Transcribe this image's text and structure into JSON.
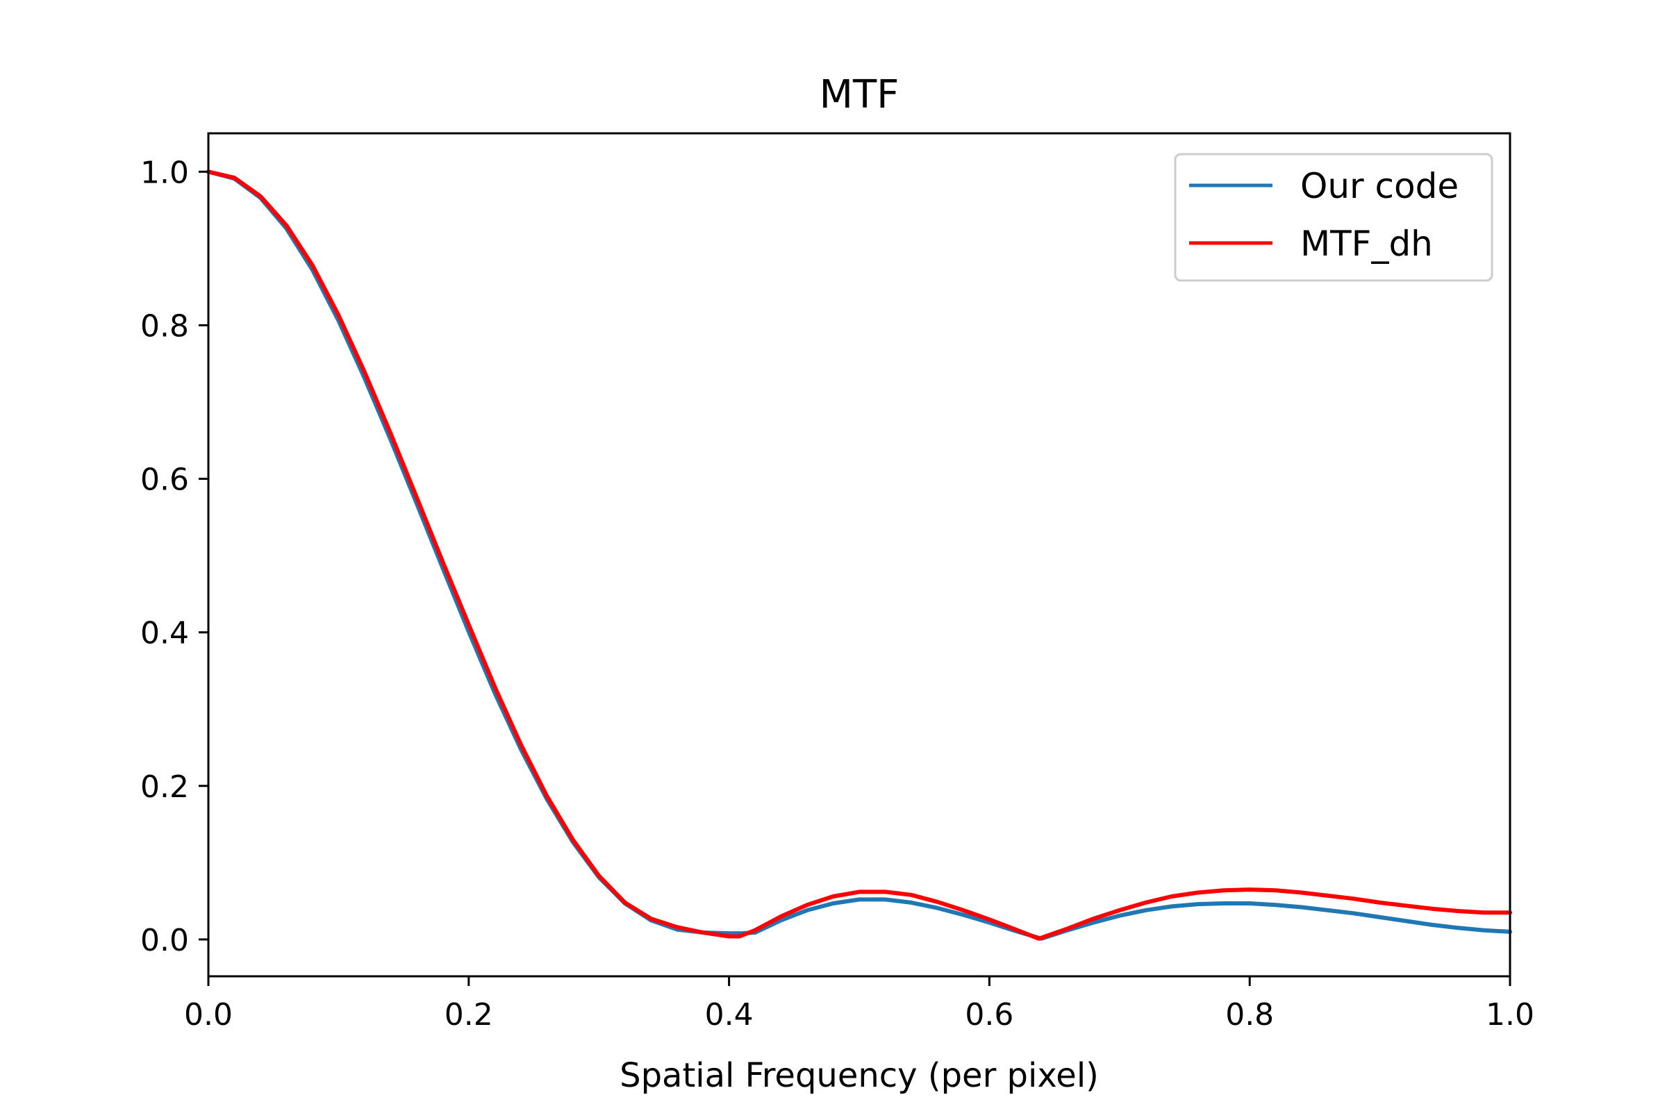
{
  "chart_data": {
    "type": "line",
    "title": "MTF",
    "xlabel": "Spatial Frequency (per pixel)",
    "ylabel": "",
    "xlim": [
      0.0,
      1.0
    ],
    "ylim": [
      -0.048,
      1.05
    ],
    "xticks": [
      0.0,
      0.2,
      0.4,
      0.6,
      0.8,
      1.0
    ],
    "xtick_labels": [
      "0.0",
      "0.2",
      "0.4",
      "0.6",
      "0.8",
      "1.0"
    ],
    "yticks": [
      0.0,
      0.2,
      0.4,
      0.6,
      0.8,
      1.0
    ],
    "ytick_labels": [
      "0.0",
      "0.2",
      "0.4",
      "0.6",
      "0.8",
      "1.0"
    ],
    "grid": false,
    "legend_position": "top-right",
    "series": [
      {
        "name": "Our code",
        "color": "#1f77b4",
        "x": [
          0.0,
          0.02,
          0.04,
          0.06,
          0.08,
          0.1,
          0.12,
          0.14,
          0.16,
          0.18,
          0.2,
          0.22,
          0.24,
          0.26,
          0.28,
          0.3,
          0.32,
          0.34,
          0.36,
          0.38,
          0.4,
          0.41,
          0.42,
          0.44,
          0.46,
          0.48,
          0.5,
          0.52,
          0.54,
          0.56,
          0.58,
          0.6,
          0.62,
          0.64,
          0.66,
          0.68,
          0.7,
          0.72,
          0.74,
          0.76,
          0.78,
          0.8,
          0.82,
          0.84,
          0.86,
          0.88,
          0.9,
          0.92,
          0.94,
          0.96,
          0.98,
          1.0
        ],
        "y": [
          1.0,
          0.991,
          0.966,
          0.926,
          0.872,
          0.806,
          0.731,
          0.651,
          0.568,
          0.484,
          0.401,
          0.321,
          0.248,
          0.183,
          0.127,
          0.081,
          0.047,
          0.025,
          0.013,
          0.009,
          0.008,
          0.008,
          0.009,
          0.025,
          0.038,
          0.047,
          0.052,
          0.052,
          0.048,
          0.041,
          0.032,
          0.022,
          0.011,
          0.001,
          0.012,
          0.022,
          0.031,
          0.038,
          0.043,
          0.046,
          0.047,
          0.047,
          0.045,
          0.042,
          0.038,
          0.034,
          0.029,
          0.024,
          0.019,
          0.015,
          0.012,
          0.01
        ]
      },
      {
        "name": "MTF_dh",
        "color": "#ff0000",
        "x": [
          0.0,
          0.02,
          0.04,
          0.06,
          0.08,
          0.1,
          0.12,
          0.14,
          0.16,
          0.18,
          0.2,
          0.22,
          0.24,
          0.26,
          0.28,
          0.3,
          0.32,
          0.34,
          0.36,
          0.38,
          0.4,
          0.408,
          0.42,
          0.44,
          0.46,
          0.48,
          0.5,
          0.52,
          0.54,
          0.56,
          0.58,
          0.6,
          0.62,
          0.638,
          0.66,
          0.68,
          0.7,
          0.72,
          0.74,
          0.76,
          0.78,
          0.8,
          0.82,
          0.84,
          0.86,
          0.88,
          0.9,
          0.92,
          0.94,
          0.96,
          0.98,
          1.0
        ],
        "y": [
          1.0,
          0.992,
          0.968,
          0.93,
          0.878,
          0.813,
          0.739,
          0.659,
          0.576,
          0.492,
          0.41,
          0.329,
          0.254,
          0.187,
          0.13,
          0.083,
          0.048,
          0.027,
          0.016,
          0.009,
          0.004,
          0.004,
          0.012,
          0.03,
          0.045,
          0.056,
          0.062,
          0.062,
          0.058,
          0.049,
          0.038,
          0.026,
          0.013,
          0.001,
          0.014,
          0.027,
          0.038,
          0.048,
          0.056,
          0.061,
          0.064,
          0.065,
          0.064,
          0.061,
          0.057,
          0.053,
          0.048,
          0.044,
          0.04,
          0.037,
          0.035,
          0.035
        ]
      }
    ]
  }
}
